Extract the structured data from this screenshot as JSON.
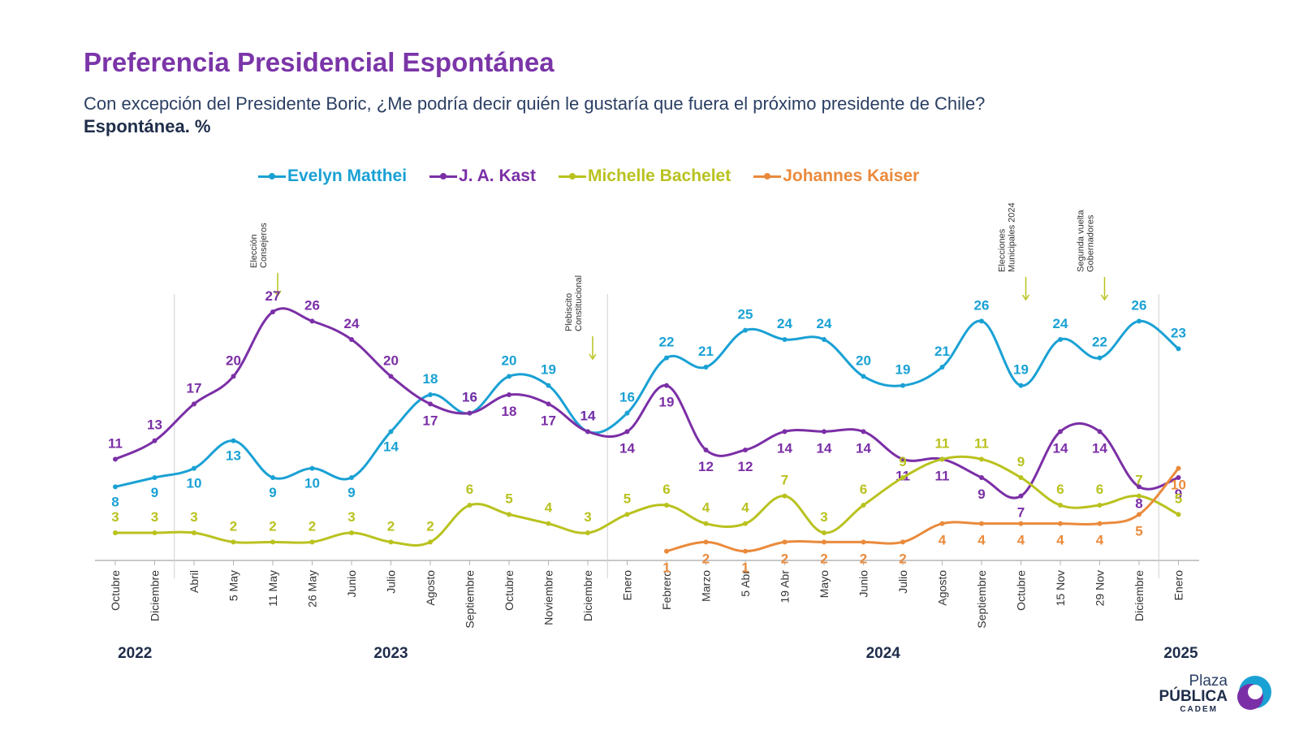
{
  "header": {
    "title": "Preferencia Presidencial Espontánea",
    "subtitle": "Con excepción del Presidente Boric, ¿Me podría decir quién le gustaría que fuera el próximo presidente de Chile?",
    "subtitle_bold": "Espontánea. %"
  },
  "logo": {
    "line1": "Plaza",
    "line2": "PÚBLICA",
    "line3": "CADEM"
  },
  "colors": {
    "matthei": "#1aa1d4",
    "kast": "#7b2fa6",
    "bachelet": "#b9c21f",
    "kaiser": "#ea8a3c",
    "axis": "#b5b5b5"
  },
  "chart_data": {
    "type": "line",
    "title": "Preferencia Presidencial Espontánea",
    "categories": [
      "Octubre",
      "Diciembre",
      "Abril",
      "5 May",
      "11 May",
      "26 May",
      "Junio",
      "Julio",
      "Agosto",
      "Septiembre",
      "Octubre",
      "Noviembre",
      "Diciembre",
      "Enero",
      "Febrero",
      "Marzo",
      "5 Abr",
      "19 Abr",
      "Mayo",
      "Junio",
      "Julio",
      "Agosto",
      "Septiembre",
      "Octubre",
      "15 Nov",
      "29 Nov",
      "Diciembre",
      "Enero"
    ],
    "years": [
      {
        "label": "2022",
        "from": 0,
        "to": 1
      },
      {
        "label": "2023",
        "from": 2,
        "to": 12
      },
      {
        "label": "2024",
        "from": 13,
        "to": 26
      },
      {
        "label": "2025",
        "from": 27,
        "to": 27
      }
    ],
    "year_separators_after": [
      1,
      12,
      26
    ],
    "ylim": [
      0,
      30
    ],
    "legend_position": "top",
    "series": [
      {
        "name": "Evelyn Matthei",
        "color": "#1aa1d4",
        "values": [
          8,
          9,
          10,
          13,
          9,
          10,
          9,
          14,
          18,
          16,
          20,
          19,
          14,
          16,
          22,
          21,
          25,
          24,
          24,
          20,
          19,
          21,
          26,
          19,
          24,
          22,
          26,
          23
        ]
      },
      {
        "name": "J. A. Kast",
        "color": "#7b2fa6",
        "values": [
          11,
          13,
          17,
          20,
          27,
          26,
          24,
          20,
          17,
          16,
          18,
          17,
          14,
          14,
          19,
          12,
          12,
          14,
          14,
          14,
          11,
          11,
          9,
          7,
          14,
          14,
          8,
          9
        ]
      },
      {
        "name": "Michelle Bachelet",
        "color": "#b9c21f",
        "values": [
          3,
          3,
          3,
          2,
          2,
          2,
          3,
          2,
          2,
          6,
          5,
          4,
          3,
          5,
          6,
          4,
          4,
          7,
          3,
          6,
          9,
          11,
          11,
          9,
          6,
          6,
          7,
          5
        ]
      },
      {
        "name": "Johannes Kaiser",
        "color": "#ea8a3c",
        "values": [
          null,
          null,
          null,
          null,
          null,
          null,
          null,
          null,
          null,
          null,
          null,
          null,
          null,
          null,
          1,
          2,
          1,
          2,
          2,
          2,
          2,
          4,
          4,
          4,
          4,
          4,
          5,
          10
        ]
      }
    ],
    "annotations": [
      {
        "index": 4,
        "lines": [
          "Elección",
          "Consejeros"
        ]
      },
      {
        "index": 12,
        "lines": [
          "Plebiscito",
          "Constitucional"
        ]
      },
      {
        "index": 23,
        "lines": [
          "Elecciones",
          "Municipales 2024"
        ]
      },
      {
        "index": 25,
        "lines": [
          "Segunda vuelta",
          "Gobernadores"
        ]
      }
    ]
  }
}
